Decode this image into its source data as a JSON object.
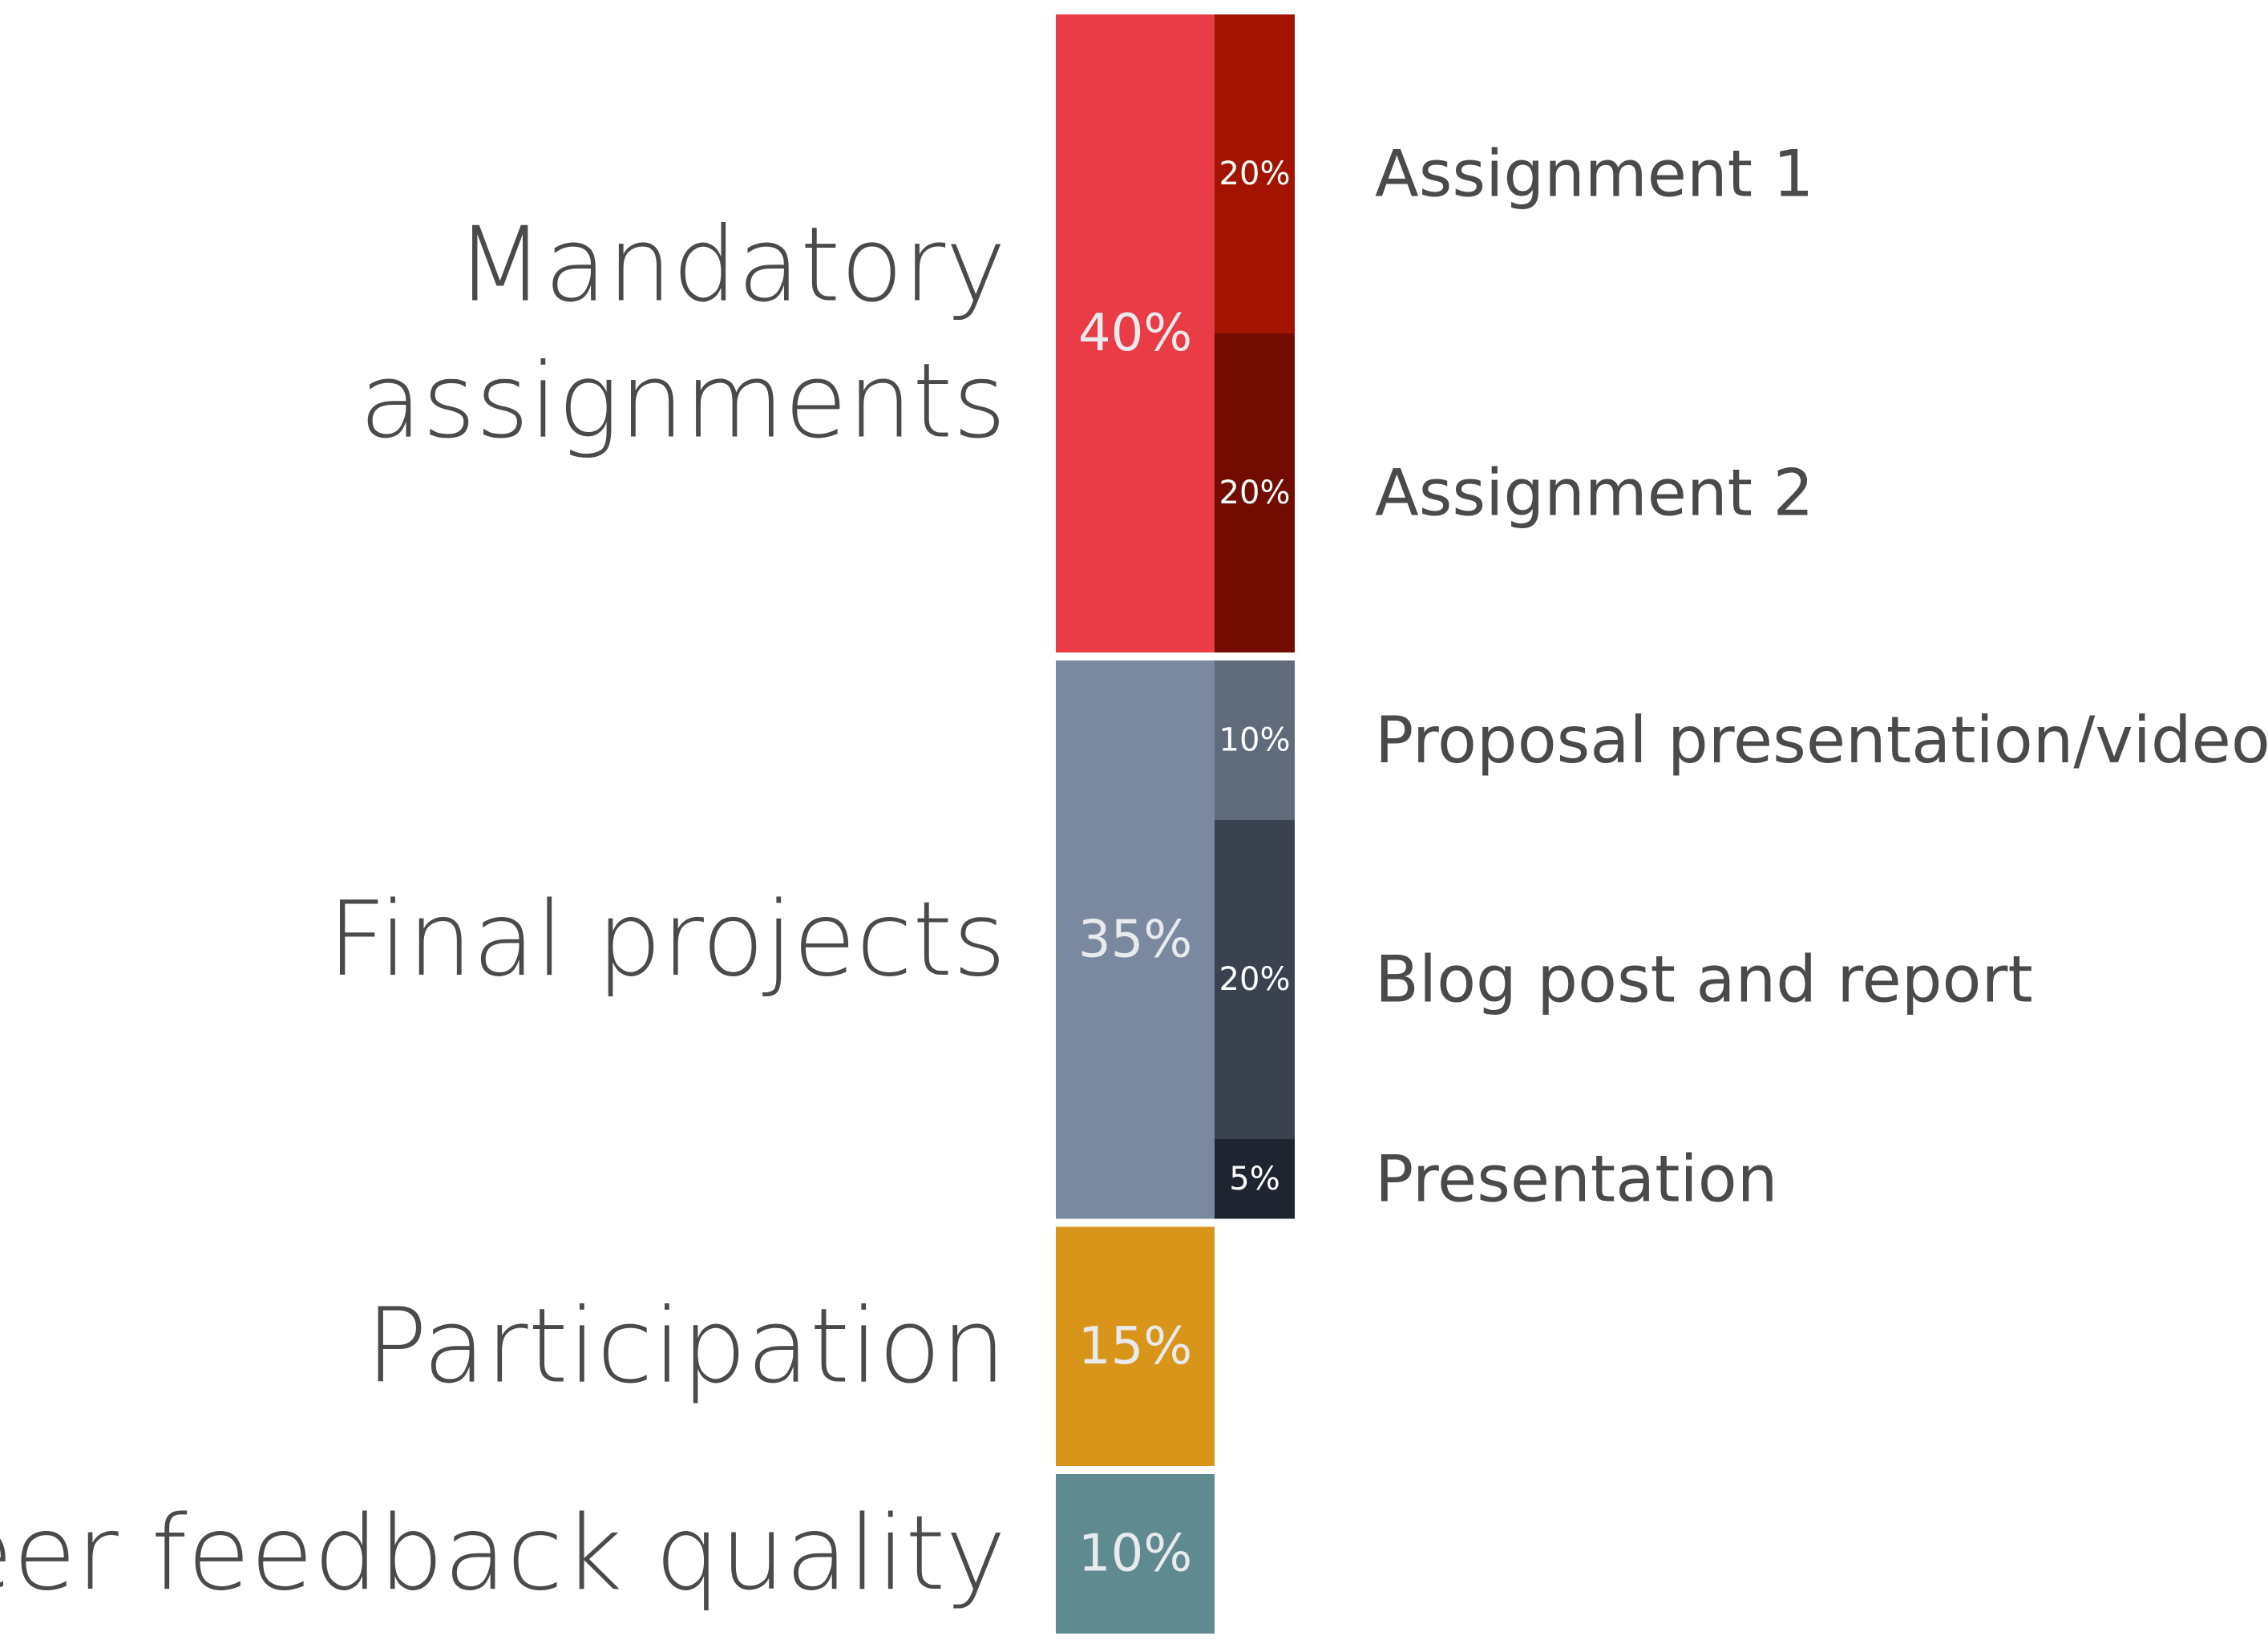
{
  "chart_data": {
    "type": "bar",
    "orientation": "stacked-vertical",
    "title": "",
    "xlabel": "",
    "ylabel": "",
    "unit": "%",
    "grid": false,
    "legend": "none",
    "categories": [
      {
        "name": "Mandatory assignments",
        "lines": [
          "Mandatory",
          "assignments"
        ],
        "value": 40,
        "label": "40%",
        "color": "#e93c46",
        "subcomponents": [
          {
            "name": "Assignment 1",
            "value": 20,
            "label": "20%",
            "color": "#a31400"
          },
          {
            "name": "Assignment 2",
            "value": 20,
            "label": "20%",
            "color": "#720c00"
          }
        ]
      },
      {
        "name": "Final projects",
        "lines": [
          "Final projects"
        ],
        "value": 35,
        "label": "35%",
        "color": "#7a899f",
        "subcomponents": [
          {
            "name": "Proposal presentation/video",
            "value": 10,
            "label": "10%",
            "color": "#5f6a7b"
          },
          {
            "name": "Blog post and report",
            "value": 20,
            "label": "20%",
            "color": "#3a4250"
          },
          {
            "name": "Presentation",
            "value": 5,
            "label": "5%",
            "color": "#1f2530"
          }
        ]
      },
      {
        "name": "Participation",
        "lines": [
          "Participation"
        ],
        "value": 15,
        "label": "15%",
        "color": "#d9951a",
        "subcomponents": []
      },
      {
        "name": "Peer feedback quality",
        "lines": [
          "Peer feedback quality"
        ],
        "value": 10,
        "label": "10%",
        "color": "#5f8a90",
        "subcomponents": []
      }
    ]
  }
}
